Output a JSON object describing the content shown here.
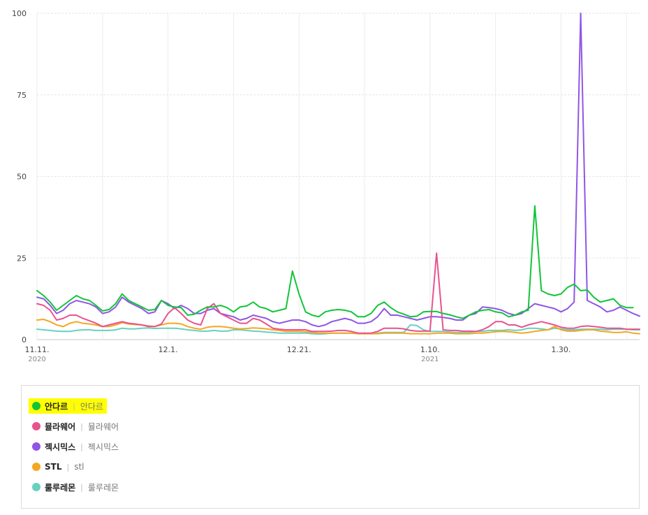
{
  "chart_data": {
    "type": "line",
    "ylim": [
      0,
      100
    ],
    "yticks": [
      "0",
      "25",
      "50",
      "75",
      "100"
    ],
    "xticks": [
      {
        "label": "11.11.",
        "sub": "2020",
        "index": 0
      },
      {
        "label": "12.1.",
        "sub": "",
        "index": 20
      },
      {
        "label": "12.21.",
        "sub": "",
        "index": 40
      },
      {
        "label": "1.10.",
        "sub": "2021",
        "index": 60
      },
      {
        "label": "1.30.",
        "sub": "",
        "index": 80
      }
    ],
    "x_start": "2020-11-11",
    "x_count": 93,
    "grid": true,
    "series": [
      {
        "name": "안다르",
        "color": "#11c539",
        "values": [
          15,
          13.5,
          11.5,
          9,
          10.5,
          12,
          13.5,
          12.5,
          12,
          10.5,
          8.8,
          9.2,
          11,
          14,
          12,
          11,
          10,
          9,
          9.2,
          12,
          10.5,
          10,
          9.8,
          7.5,
          7.8,
          9,
          10,
          10,
          10.5,
          9.8,
          8.5,
          10,
          10.3,
          11.5,
          10,
          9.5,
          8.5,
          9,
          9.5,
          21,
          14,
          8.5,
          7.5,
          7,
          8.5,
          9,
          9.2,
          9,
          8.5,
          7,
          7,
          8,
          10.5,
          11.5,
          9.8,
          8.5,
          7.8,
          7,
          7.2,
          8.5,
          8.6,
          8.6,
          8,
          7.6,
          7,
          6.5,
          7.5,
          8.5,
          9,
          9.2,
          8.5,
          8.2,
          7,
          7.5,
          8.5,
          9,
          41,
          15,
          14,
          13.5,
          14,
          16,
          17,
          15,
          15.2,
          13,
          11.5,
          12,
          12.5,
          10.5,
          9.8,
          9.8
        ]
      },
      {
        "name": "뮬라웨어",
        "color": "#e9538d",
        "values": [
          11,
          10.5,
          9,
          6,
          6.5,
          7.5,
          7.5,
          6.5,
          5.8,
          5,
          4,
          4.5,
          5,
          5.5,
          5,
          4.8,
          4.5,
          4,
          4,
          4.8,
          8,
          9.8,
          8,
          6,
          5,
          4.5,
          9.5,
          11,
          8,
          7,
          6,
          5,
          5,
          6.5,
          6,
          4.8,
          3.5,
          3.2,
          3,
          3,
          3,
          3,
          2.5,
          2.5,
          2.5,
          2.6,
          2.8,
          2.8,
          2.5,
          2,
          2,
          2,
          2.5,
          3.5,
          3.5,
          3.5,
          3.3,
          2.8,
          2.6,
          2.6,
          2.6,
          26.5,
          3,
          2.8,
          2.8,
          2.6,
          2.6,
          2.5,
          3,
          4,
          5.5,
          5.5,
          4.5,
          4.5,
          3.8,
          4.5,
          5,
          5.5,
          5,
          4.5,
          3.8,
          3.5,
          3.5,
          4,
          4.2,
          4,
          3.8,
          3.5,
          3.5,
          3.5,
          3.2,
          3.2,
          3.2
        ]
      },
      {
        "name": "젝시믹스",
        "color": "#8f56e6",
        "values": [
          13,
          12.5,
          10.5,
          8,
          9,
          11,
          12,
          11.5,
          11,
          10,
          8,
          8.5,
          10,
          13,
          11.5,
          10.5,
          9.5,
          8,
          8.5,
          12,
          11,
          9.5,
          10.5,
          9.5,
          8,
          8,
          9,
          9.5,
          8,
          7.5,
          7,
          6,
          6.5,
          7.5,
          7,
          6.5,
          5.5,
          5,
          5.5,
          6,
          6,
          5.5,
          4.5,
          4,
          4.5,
          5.5,
          6,
          6.5,
          6,
          5,
          5,
          5.5,
          7,
          9.5,
          7.5,
          7.5,
          7,
          6.5,
          6,
          6.5,
          7,
          7,
          6.8,
          6.5,
          6,
          6,
          7.5,
          8,
          10,
          9.8,
          9.5,
          9,
          8,
          7.5,
          8,
          9.5,
          11,
          10.5,
          10,
          9.5,
          8.5,
          9.5,
          11.5,
          100,
          12,
          11,
          10,
          8.5,
          9,
          10,
          9,
          8,
          7.2
        ]
      },
      {
        "name": "STL",
        "color": "#f6a623",
        "values": [
          6,
          6.2,
          5.5,
          4.5,
          4,
          5,
          5.5,
          5,
          4.8,
          4.5,
          4,
          4,
          4.5,
          5.2,
          4.8,
          4.6,
          4.5,
          4.2,
          4,
          4.5,
          5,
          5,
          4.8,
          4,
          3.5,
          3.2,
          3.8,
          4,
          4,
          3.8,
          3.5,
          3.3,
          3.4,
          3.6,
          3.5,
          3.3,
          3,
          2.8,
          2.5,
          2.5,
          2.5,
          2.4,
          2.2,
          2,
          2,
          2,
          2,
          2,
          2,
          1.8,
          1.8,
          1.8,
          1.8,
          2,
          2,
          2,
          2,
          1.8,
          1.8,
          1.8,
          1.8,
          2,
          2,
          2,
          1.8,
          1.8,
          1.8,
          2,
          2,
          2.2,
          2.4,
          2.5,
          2.4,
          2.2,
          2,
          2.2,
          2.5,
          2.8,
          3,
          4,
          3,
          2.6,
          2.6,
          2.8,
          3,
          3,
          2.6,
          2.4,
          2.2,
          2.2,
          2.4,
          2,
          1.8
        ]
      },
      {
        "name": "룰루레몬",
        "color": "#67d1bf",
        "values": [
          3.2,
          3,
          2.8,
          2.6,
          2.5,
          2.5,
          2.8,
          3,
          3,
          2.8,
          2.8,
          2.8,
          3,
          3.5,
          3.3,
          3.3,
          3.5,
          3.6,
          3.4,
          3.5,
          3.5,
          3.5,
          3.3,
          3,
          2.8,
          2.6,
          2.6,
          2.8,
          2.6,
          2.6,
          3,
          3,
          2.8,
          2.6,
          2.5,
          2.3,
          2.2,
          2,
          2,
          2,
          2,
          2,
          1.8,
          1.7,
          1.8,
          2,
          2,
          2,
          2,
          2,
          1.8,
          1.8,
          2,
          2.2,
          2.2,
          2.2,
          2.2,
          4.5,
          4.3,
          3,
          2.5,
          2.5,
          2.5,
          2.3,
          2.2,
          2.2,
          2.2,
          2.5,
          2.5,
          2.8,
          2.8,
          2.8,
          3,
          2.8,
          3,
          3.5,
          3.5,
          3.3,
          3,
          3.5,
          3.3,
          3,
          3,
          3.2,
          3.2,
          3.2,
          3.2,
          3,
          3.2,
          3.2,
          3.2,
          3,
          3
        ]
      }
    ]
  },
  "legend": [
    {
      "name": "안다르",
      "keyword": "안다르",
      "color": "#11c539",
      "highlighted": true
    },
    {
      "name": "뮬라웨어",
      "keyword": "뮬라웨어",
      "color": "#e9538d",
      "highlighted": false
    },
    {
      "name": "젝시믹스",
      "keyword": "젝시믹스",
      "color": "#8f56e6",
      "highlighted": false
    },
    {
      "name": "STL",
      "keyword": "stl",
      "color": "#f6a623",
      "highlighted": false
    },
    {
      "name": "룰루레몬",
      "keyword": "룰루레몬",
      "color": "#67d1bf",
      "highlighted": false
    }
  ]
}
